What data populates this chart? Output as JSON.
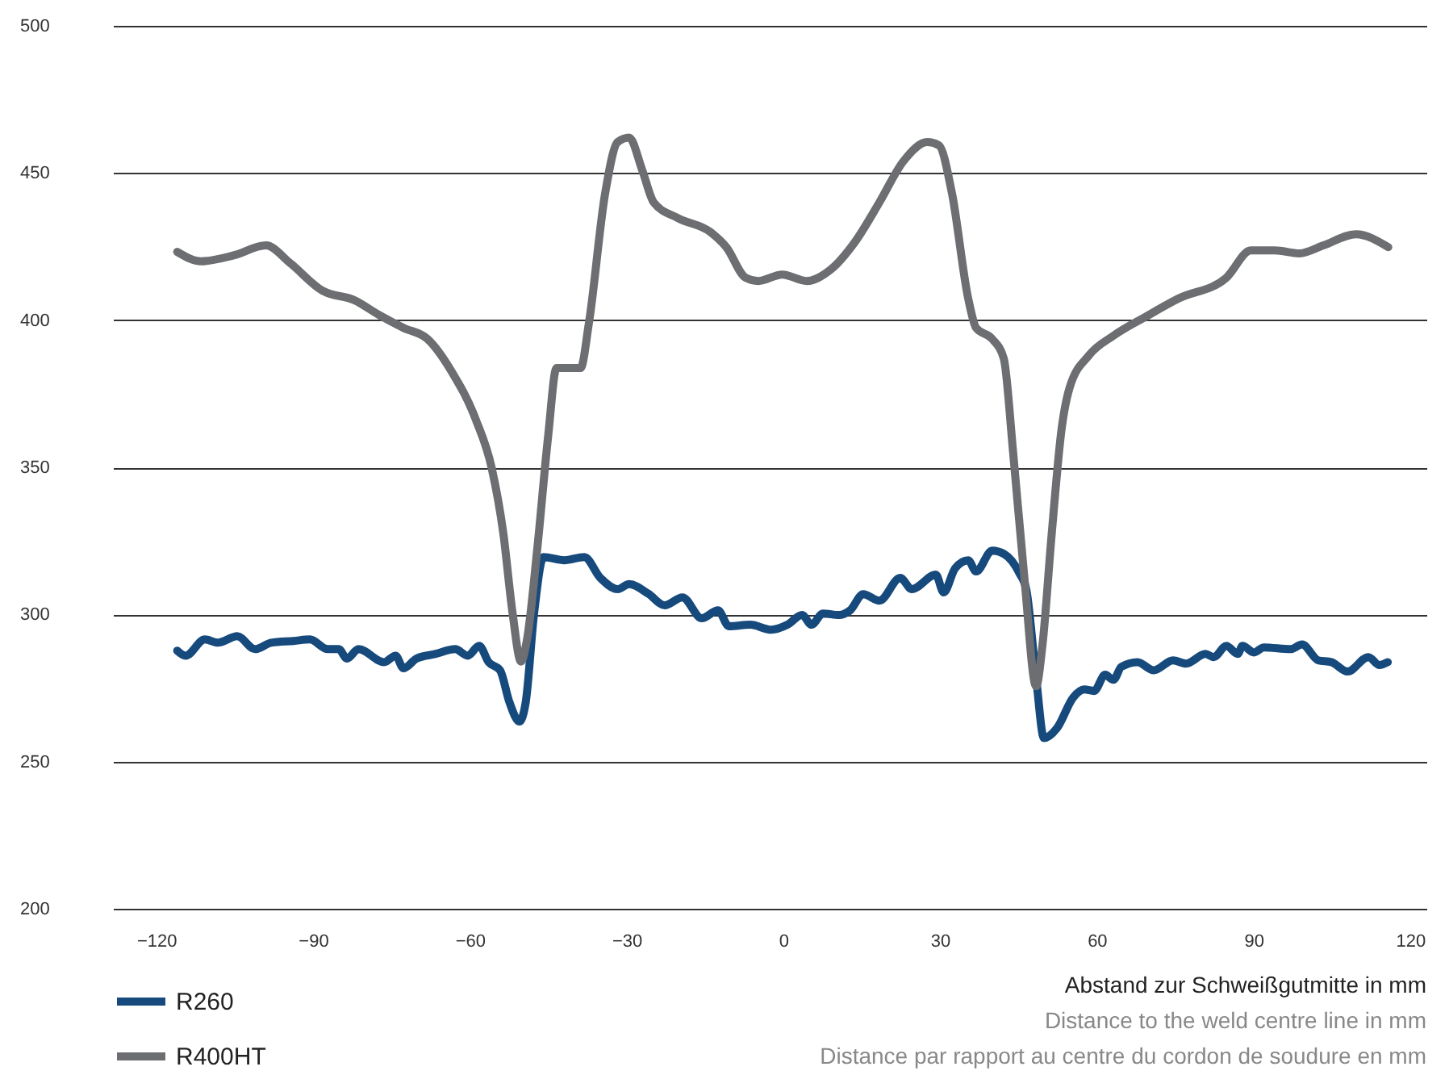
{
  "chart_data": {
    "type": "line",
    "xlabel": "Abstand zur Schweißgutmitte in mm",
    "annotations": [
      "Distance to the weld centre line in mm",
      "Distance par rapport au centre du cordon de soudure en mm"
    ],
    "xlim": [
      -128.3,
      123.1
    ],
    "xticks": [
      -120,
      -90,
      -60,
      -30,
      0,
      30,
      60,
      90,
      120
    ],
    "ylim": [
      200,
      500
    ],
    "yticks": [
      200,
      250,
      300,
      350,
      400,
      450,
      500
    ],
    "grid": "y",
    "legend": "bottom left",
    "line_style": "solid",
    "marker": "none",
    "series": [
      {
        "name": "R260",
        "color": "#174a7c",
        "x": [
          -116,
          -114.4,
          -110.7,
          -108.2,
          -104.5,
          -101.1,
          -98,
          -93.7,
          -90.6,
          -87.2,
          -85.1,
          -83.5,
          -81.3,
          -76.4,
          -74.2,
          -72.7,
          -70.2,
          -66.5,
          -62.8,
          -60.4,
          -58.2,
          -56.4,
          -54.2,
          -52.4,
          -50.5,
          -49.3,
          -47.7,
          -45.9,
          -41.9,
          -38.1,
          -35,
          -31.7,
          -29.5,
          -25.8,
          -22.7,
          -19.3,
          -15.6,
          -12.5,
          -10.4,
          -6.3,
          -2.3,
          0.8,
          3.6,
          5.4,
          7.6,
          10.7,
          12.8,
          15.3,
          18.4,
          22.4,
          24.6,
          29.2,
          30.7,
          32.9,
          35.4,
          36.9,
          40,
          42.2,
          45.2,
          46.5,
          48.4,
          49.9,
          52.4,
          55.5,
          57.6,
          59.5,
          61.6,
          63.2,
          64.7,
          67.8,
          70.9,
          74.6,
          77.1,
          80.8,
          82.4,
          84.8,
          87,
          87.9,
          90.1,
          92,
          97.1,
          99.3,
          102.4,
          104.9,
          108,
          112,
          114.1,
          115.7
        ],
        "values": [
          287.7,
          286,
          291.5,
          290.4,
          292.6,
          288.2,
          290.4,
          291,
          291.5,
          288.2,
          288.2,
          285,
          288.2,
          283.8,
          286,
          281.7,
          285,
          286.6,
          288.2,
          286,
          289.3,
          283.8,
          281,
          270.1,
          263.6,
          270.1,
          300.3,
          319.5,
          318.4,
          319.5,
          312.4,
          308.6,
          310.3,
          307,
          303.1,
          305.8,
          298.7,
          301.4,
          296,
          296.5,
          294.8,
          296.5,
          299.8,
          296.5,
          300.3,
          299.8,
          301.4,
          306.9,
          304.7,
          312.4,
          308.6,
          313.5,
          307.5,
          315.7,
          318.4,
          314.6,
          321.7,
          320.6,
          314,
          308.6,
          278.4,
          258,
          261.4,
          271.8,
          274.5,
          274,
          279.5,
          277.8,
          282.2,
          283.8,
          281,
          284.4,
          283.3,
          286.6,
          285.5,
          289.3,
          286.6,
          289.3,
          287.1,
          288.8,
          288.2,
          289.8,
          284.4,
          283.8,
          280.6,
          285.5,
          282.8,
          283.8
        ]
      },
      {
        "name": "R400HT",
        "color": "#6d6e71",
        "x": [
          -116,
          -111.4,
          -105.2,
          -99,
          -94.4,
          -88.2,
          -82,
          -77.4,
          -72.7,
          -68.1,
          -63.5,
          -58.8,
          -55.8,
          -53.6,
          -51.8,
          -50.2,
          -49,
          -47.1,
          -45,
          -43.4,
          -38.8,
          -37.2,
          -34.1,
          -31.7,
          -29.5,
          -27,
          -24.8,
          -20.2,
          -14,
          -10.9,
          -7.2,
          -4.8,
          -0.2,
          4.5,
          9.1,
          13.7,
          18.4,
          23,
          27.6,
          29.8,
          32.3,
          35.4,
          36.9,
          40,
          42.2,
          44,
          46.2,
          48.4,
          49.6,
          51.4,
          53.3,
          54.8,
          58.5,
          63.2,
          69.4,
          75.6,
          84.8,
          89.5,
          94.1,
          98.8,
          103.4,
          109.6,
          115.8
        ],
        "values": [
          423.2,
          420,
          422,
          425.4,
          419.4,
          410,
          406.7,
          401.8,
          397.4,
          393.6,
          382.6,
          366,
          349.7,
          327.8,
          300.3,
          284,
          292,
          322,
          360.6,
          383.7,
          383.7,
          399,
          443,
          460.5,
          462,
          451,
          440,
          434.7,
          430,
          424.8,
          414.4,
          413.3,
          415.5,
          413.3,
          417.2,
          426.5,
          440,
          454,
          460.5,
          459.4,
          443,
          407.3,
          397.4,
          393.6,
          387,
          355,
          311.4,
          275.6,
          289.4,
          327.8,
          363.4,
          377,
          388,
          394.7,
          401.2,
          407.3,
          414.4,
          423.7,
          423.7,
          422.7,
          425.4,
          429.2,
          424.8
        ]
      }
    ]
  }
}
